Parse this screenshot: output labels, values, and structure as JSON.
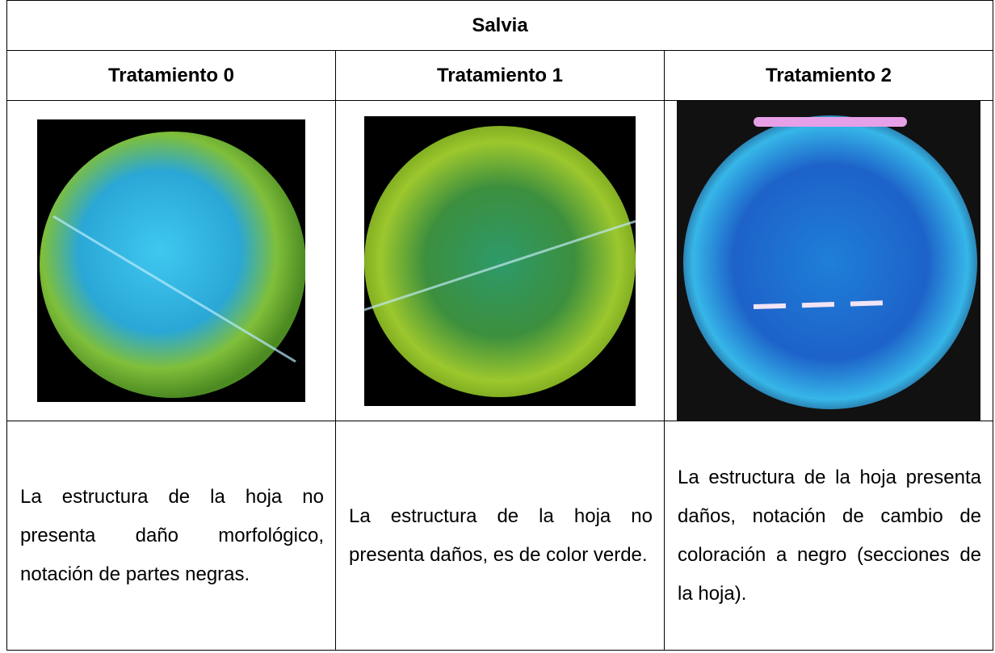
{
  "table": {
    "title": "Salvia",
    "headers": [
      "Tratamiento 0",
      "Tratamiento 1",
      "Tratamiento 2"
    ],
    "descriptions": [
      "La estructura de la hoja no presenta daño morfológico, notación de partes negras.",
      "La estructura de la hoja no presenta daños, es de color verde.",
      "La estructura de la hoja presenta daños, notación de cambio de coloración a negro (secciones de la hoja)."
    ]
  }
}
